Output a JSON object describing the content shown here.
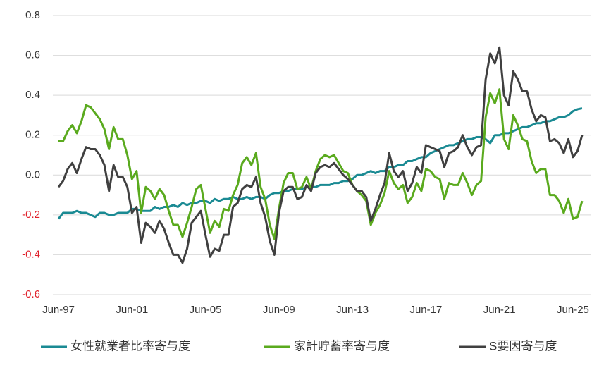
{
  "chart_data": {
    "type": "line",
    "categories": [
      "Jun-97",
      null,
      null,
      null,
      null,
      null,
      null,
      null,
      null,
      null,
      null,
      null,
      null,
      null,
      null,
      null,
      "Jun-01",
      null,
      null,
      null,
      null,
      null,
      null,
      null,
      null,
      null,
      null,
      null,
      null,
      null,
      null,
      null,
      "Jun-05",
      null,
      null,
      null,
      null,
      null,
      null,
      null,
      null,
      null,
      null,
      null,
      null,
      null,
      null,
      null,
      "Jun-09",
      null,
      null,
      null,
      null,
      null,
      null,
      null,
      null,
      null,
      null,
      null,
      null,
      null,
      null,
      null,
      "Jun-13",
      null,
      null,
      null,
      null,
      null,
      null,
      null,
      null,
      null,
      null,
      null,
      null,
      null,
      null,
      null,
      "Jun-17",
      null,
      null,
      null,
      null,
      null,
      null,
      null,
      null,
      null,
      null,
      null,
      null,
      null,
      null,
      null,
      "Jun-21",
      null,
      null,
      null,
      null,
      null,
      null,
      null,
      null,
      null,
      null,
      null,
      null,
      null,
      null,
      null,
      "Jun-25",
      null,
      null
    ],
    "series": [
      {
        "name": "女性就業者比率寄与度",
        "color": "#1a8a93",
        "values": [
          -0.22,
          -0.19,
          -0.19,
          -0.19,
          -0.18,
          -0.19,
          -0.19,
          -0.2,
          -0.21,
          -0.19,
          -0.19,
          -0.2,
          -0.2,
          -0.19,
          -0.19,
          -0.19,
          -0.17,
          -0.17,
          -0.18,
          -0.18,
          -0.18,
          -0.16,
          -0.17,
          -0.16,
          -0.16,
          -0.15,
          -0.16,
          -0.14,
          -0.15,
          -0.14,
          -0.14,
          -0.13,
          -0.13,
          -0.14,
          -0.12,
          -0.13,
          -0.12,
          -0.12,
          -0.11,
          -0.12,
          -0.12,
          -0.11,
          -0.12,
          -0.11,
          -0.11,
          -0.12,
          -0.1,
          -0.09,
          -0.09,
          -0.08,
          -0.08,
          -0.07,
          -0.07,
          -0.07,
          -0.06,
          -0.06,
          -0.06,
          -0.05,
          -0.05,
          -0.05,
          -0.04,
          -0.04,
          -0.03,
          -0.03,
          -0.02,
          0.0,
          0.0,
          0.01,
          0.02,
          0.01,
          0.02,
          0.02,
          0.04,
          0.04,
          0.05,
          0.05,
          0.07,
          0.07,
          0.08,
          0.09,
          0.09,
          0.11,
          0.12,
          0.13,
          0.14,
          0.15,
          0.15,
          0.16,
          0.17,
          0.18,
          0.18,
          0.19,
          0.19,
          0.18,
          0.16,
          0.2,
          0.2,
          0.21,
          0.21,
          0.22,
          0.23,
          0.24,
          0.24,
          0.25,
          0.26,
          0.26,
          0.27,
          0.27,
          0.28,
          0.29,
          0.29,
          0.3,
          0.32,
          0.33,
          0.335
        ]
      },
      {
        "name": "家計貯蓄率寄与度",
        "color": "#5aaa1e",
        "values": [
          0.17,
          0.17,
          0.22,
          0.25,
          0.21,
          0.27,
          0.35,
          0.34,
          0.31,
          0.28,
          0.23,
          0.13,
          0.24,
          0.18,
          0.18,
          0.1,
          -0.02,
          0.02,
          -0.19,
          -0.06,
          -0.08,
          -0.12,
          -0.07,
          -0.1,
          -0.18,
          -0.25,
          -0.25,
          -0.31,
          -0.24,
          -0.16,
          -0.07,
          -0.05,
          -0.17,
          -0.29,
          -0.23,
          -0.26,
          -0.17,
          -0.18,
          -0.1,
          -0.05,
          0.06,
          0.09,
          0.05,
          0.11,
          -0.06,
          -0.12,
          -0.25,
          -0.32,
          -0.17,
          -0.04,
          0.01,
          0.01,
          -0.07,
          -0.06,
          -0.01,
          -0.07,
          0.02,
          0.08,
          0.1,
          0.09,
          0.1,
          0.06,
          0.02,
          0.01,
          -0.05,
          -0.08,
          -0.1,
          -0.13,
          -0.25,
          -0.19,
          -0.15,
          -0.09,
          0.02,
          -0.04,
          -0.07,
          -0.05,
          -0.14,
          -0.11,
          -0.04,
          -0.08,
          0.03,
          0.02,
          -0.01,
          -0.02,
          -0.12,
          -0.04,
          -0.05,
          -0.05,
          0.01,
          -0.04,
          -0.1,
          -0.05,
          -0.03,
          0.29,
          0.41,
          0.36,
          0.43,
          0.18,
          0.13,
          0.3,
          0.25,
          0.18,
          0.17,
          0.07,
          0.01,
          0.03,
          0.03,
          -0.1,
          -0.1,
          -0.13,
          -0.19,
          -0.12,
          -0.22,
          -0.21,
          -0.13
        ]
      },
      {
        "name": "S要因寄与度",
        "color": "#404040",
        "values": [
          -0.06,
          -0.03,
          0.03,
          0.06,
          0.01,
          0.08,
          0.14,
          0.13,
          0.13,
          0.1,
          0.05,
          -0.08,
          0.05,
          -0.01,
          -0.01,
          -0.06,
          -0.19,
          -0.16,
          -0.34,
          -0.24,
          -0.26,
          -0.29,
          -0.23,
          -0.27,
          -0.34,
          -0.4,
          -0.4,
          -0.44,
          -0.37,
          -0.24,
          -0.21,
          -0.18,
          -0.3,
          -0.41,
          -0.37,
          -0.38,
          -0.3,
          -0.3,
          -0.16,
          -0.14,
          -0.07,
          -0.05,
          -0.06,
          -0.01,
          -0.14,
          -0.21,
          -0.33,
          -0.4,
          -0.19,
          -0.08,
          -0.06,
          -0.06,
          -0.12,
          -0.11,
          -0.05,
          -0.08,
          0.01,
          0.04,
          0.05,
          0.04,
          0.06,
          0.03,
          0.0,
          -0.02,
          -0.05,
          -0.08,
          -0.08,
          -0.11,
          -0.23,
          -0.17,
          -0.1,
          -0.04,
          0.11,
          0.02,
          -0.01,
          0.02,
          -0.08,
          -0.04,
          0.04,
          0.01,
          0.15,
          0.14,
          0.13,
          0.12,
          0.04,
          0.11,
          0.12,
          0.14,
          0.2,
          0.14,
          0.1,
          0.14,
          0.15,
          0.48,
          0.61,
          0.56,
          0.64,
          0.4,
          0.35,
          0.52,
          0.48,
          0.42,
          0.42,
          0.33,
          0.27,
          0.3,
          0.29,
          0.17,
          0.18,
          0.16,
          0.11,
          0.18,
          0.09,
          0.12,
          0.2
        ]
      }
    ],
    "ylim": [
      -0.6,
      0.8
    ],
    "yticks": [
      -0.6,
      -0.4,
      -0.2,
      {
        "value": 0,
        "label": "0.0"
      },
      0.2,
      0.4,
      0.6,
      0.8
    ],
    "negative_tick_color": "#e0202a",
    "grid": true,
    "legend": "bottom"
  }
}
